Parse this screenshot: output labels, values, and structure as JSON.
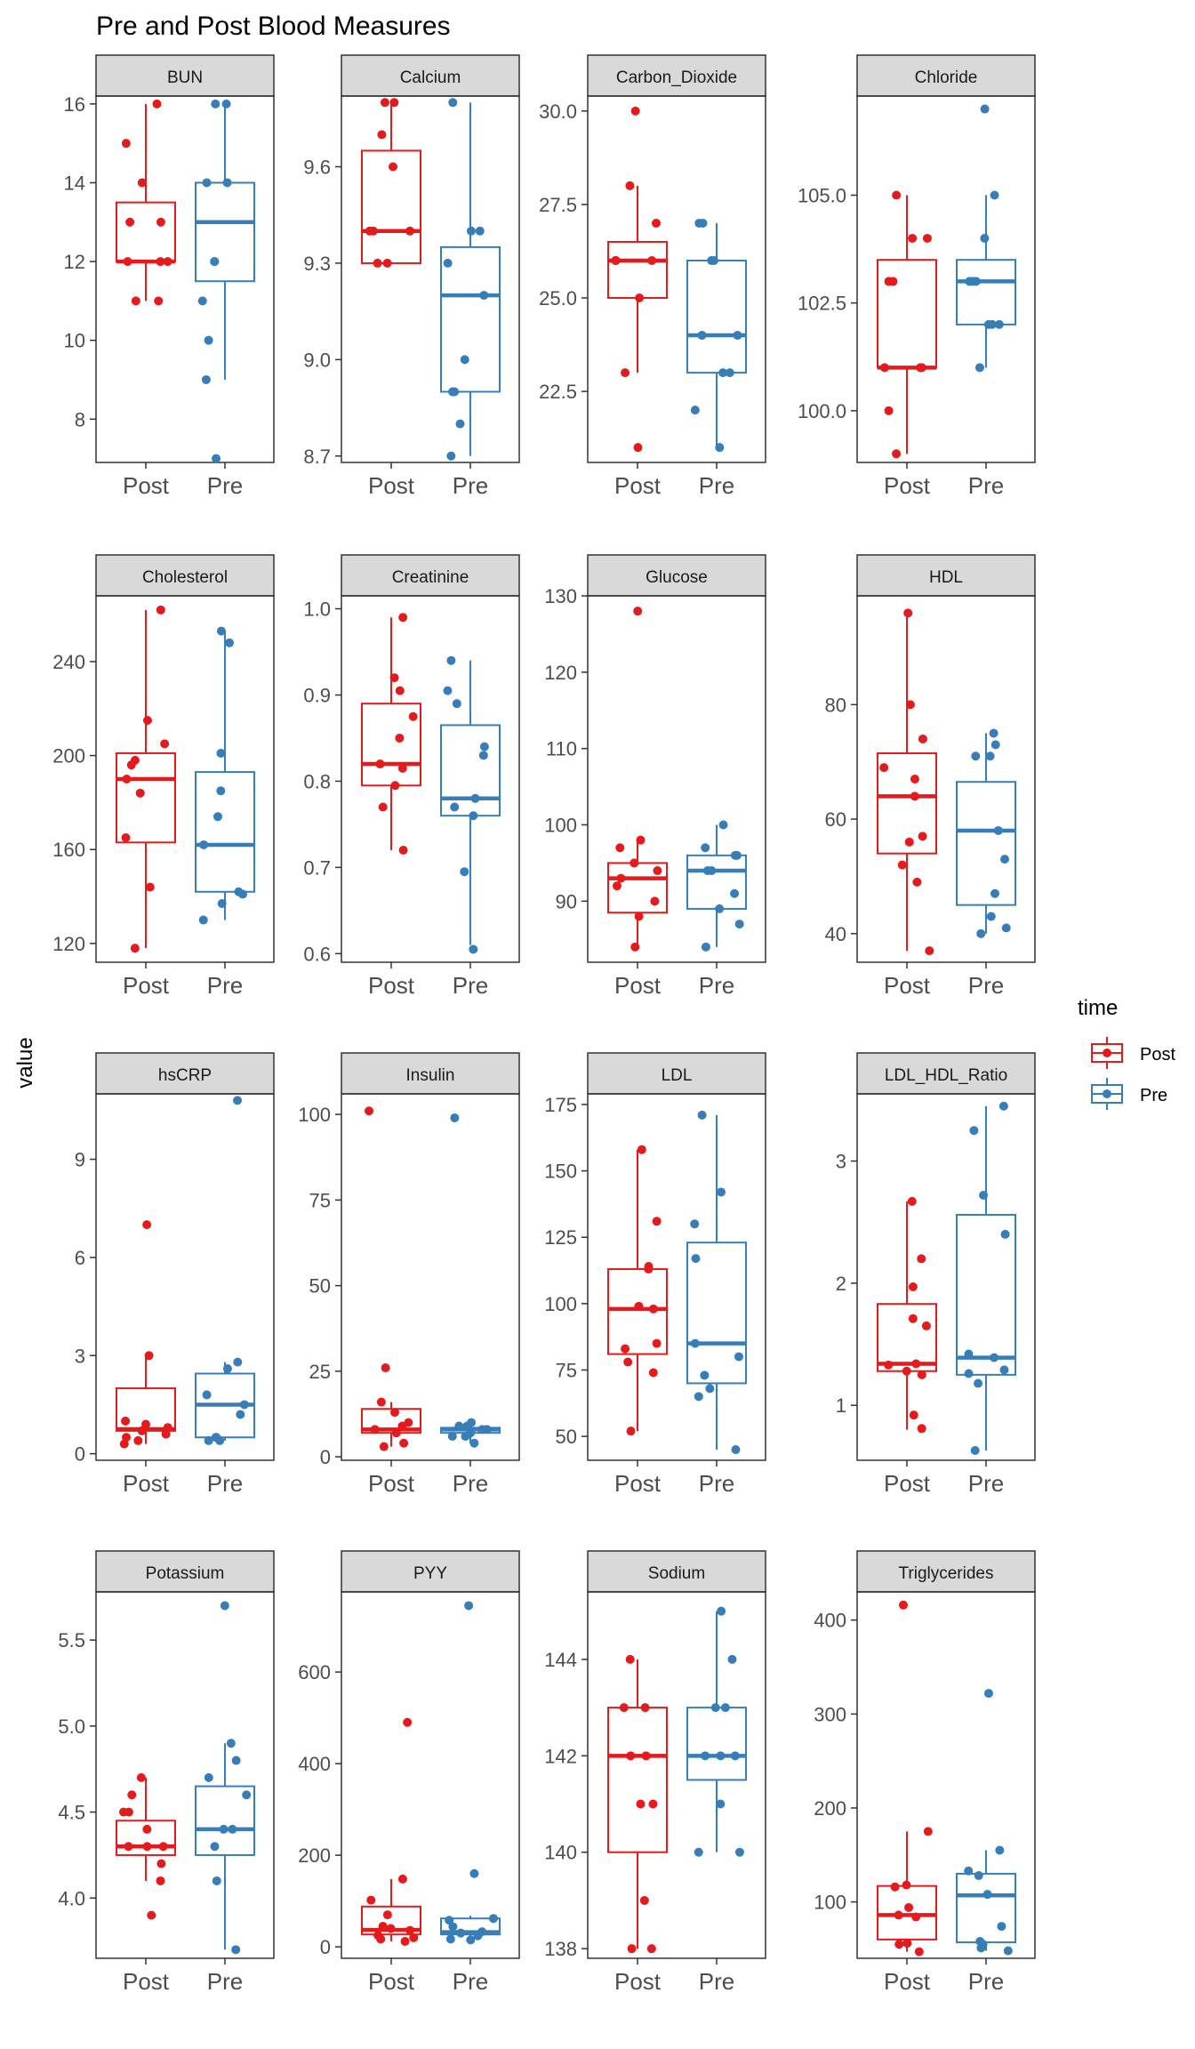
{
  "chart_data": {
    "type": "boxplot",
    "title": "Pre and Post Blood Measures",
    "ylabel": "value",
    "xlabel": "",
    "legend": {
      "title": "time",
      "position": "right",
      "entries": [
        {
          "name": "Post",
          "color": "#E41A1C"
        },
        {
          "name": "Pre",
          "color": "#377EB8"
        }
      ]
    },
    "categories": [
      "Post",
      "Pre"
    ],
    "panels": [
      {
        "name": "BUN",
        "ylim": [
          6.9,
          16.2
        ],
        "yticks": [
          8,
          10,
          12,
          14,
          16
        ],
        "yticklabels": [
          "8",
          "10",
          "12",
          "14",
          "16"
        ],
        "boxes": [
          {
            "group": "Post",
            "q1": 12,
            "median": 12,
            "q3": 13.5,
            "wlo": 11,
            "whi": 16
          },
          {
            "group": "Pre",
            "q1": 11.5,
            "median": 13,
            "q3": 14,
            "wlo": 9,
            "whi": 16
          }
        ],
        "points": {
          "Post": [
            16,
            15,
            14,
            13,
            13,
            12,
            12,
            12,
            11,
            11
          ],
          "Pre": [
            16,
            16,
            14,
            14,
            12,
            12,
            11,
            10,
            9,
            7
          ]
        }
      },
      {
        "name": "Calcium",
        "ylim": [
          8.68,
          9.82
        ],
        "yticks": [
          8.7,
          9.0,
          9.3,
          9.6
        ],
        "yticklabels": [
          "8.7",
          "9.0",
          "9.3",
          "9.6"
        ],
        "boxes": [
          {
            "group": "Post",
            "q1": 9.3,
            "median": 9.4,
            "q3": 9.65,
            "wlo": 9.3,
            "whi": 9.8
          },
          {
            "group": "Pre",
            "q1": 8.9,
            "median": 9.2,
            "q3": 9.35,
            "wlo": 8.7,
            "whi": 9.8
          }
        ],
        "points": {
          "Post": [
            9.8,
            9.8,
            9.7,
            9.6,
            9.4,
            9.4,
            9.4,
            9.3,
            9.3
          ],
          "Pre": [
            9.8,
            9.4,
            9.4,
            9.3,
            9.2,
            9.0,
            8.9,
            8.9,
            8.8,
            8.7
          ]
        }
      },
      {
        "name": "Carbon_Dioxide",
        "ylim": [
          20.6,
          30.4
        ],
        "yticks": [
          22.5,
          25.0,
          27.5,
          30.0
        ],
        "yticklabels": [
          "22.5",
          "25.0",
          "27.5",
          "30.0"
        ],
        "boxes": [
          {
            "group": "Post",
            "q1": 25,
            "median": 26,
            "q3": 26.5,
            "wlo": 23,
            "whi": 28
          },
          {
            "group": "Pre",
            "q1": 23,
            "median": 24,
            "q3": 26,
            "wlo": 21,
            "whi": 27
          }
        ],
        "points": {
          "Post": [
            30,
            28,
            27,
            26,
            26,
            26,
            25,
            23,
            21
          ],
          "Pre": [
            27,
            27,
            26,
            26,
            24,
            24,
            23,
            23,
            22,
            21
          ]
        }
      },
      {
        "name": "Chloride",
        "ylim": [
          98.8,
          107.3
        ],
        "yticks": [
          100.0,
          102.5,
          105.0
        ],
        "yticklabels": [
          "100.0",
          "102.5",
          "105.0"
        ],
        "boxes": [
          {
            "group": "Post",
            "q1": 101,
            "median": 101,
            "q3": 103.5,
            "wlo": 99,
            "whi": 105
          },
          {
            "group": "Pre",
            "q1": 102,
            "median": 103,
            "q3": 103.5,
            "wlo": 101,
            "whi": 105
          }
        ],
        "points": {
          "Post": [
            105,
            104,
            104,
            103,
            103,
            101,
            101,
            101,
            100,
            99
          ],
          "Pre": [
            107,
            105,
            104,
            103,
            103,
            103,
            102,
            102,
            102,
            101
          ]
        }
      },
      {
        "name": "Cholesterol",
        "ylim": [
          112,
          268
        ],
        "yticks": [
          120,
          160,
          200,
          240
        ],
        "yticklabels": [
          "120",
          "160",
          "200",
          "240"
        ],
        "boxes": [
          {
            "group": "Post",
            "q1": 163,
            "median": 190,
            "q3": 201,
            "wlo": 118,
            "whi": 262
          },
          {
            "group": "Pre",
            "q1": 142,
            "median": 162,
            "q3": 193,
            "wlo": 130,
            "whi": 253
          }
        ],
        "points": {
          "Post": [
            262,
            215,
            205,
            198,
            196,
            190,
            184,
            165,
            144,
            118
          ],
          "Pre": [
            253,
            248,
            201,
            185,
            174,
            162,
            142,
            141,
            137,
            130
          ]
        }
      },
      {
        "name": "Creatinine",
        "ylim": [
          0.59,
          1.015
        ],
        "yticks": [
          0.6,
          0.7,
          0.8,
          0.9,
          1.0
        ],
        "yticklabels": [
          "0.6",
          "0.7",
          "0.8",
          "0.9",
          "1.0"
        ],
        "boxes": [
          {
            "group": "Post",
            "q1": 0.795,
            "median": 0.82,
            "q3": 0.89,
            "wlo": 0.72,
            "whi": 0.99
          },
          {
            "group": "Pre",
            "q1": 0.76,
            "median": 0.78,
            "q3": 0.865,
            "wlo": 0.61,
            "whi": 0.94
          }
        ],
        "points": {
          "Post": [
            0.99,
            0.92,
            0.905,
            0.875,
            0.85,
            0.82,
            0.815,
            0.795,
            0.77,
            0.72
          ],
          "Pre": [
            0.94,
            0.905,
            0.89,
            0.84,
            0.83,
            0.78,
            0.77,
            0.76,
            0.695,
            0.605
          ]
        }
      },
      {
        "name": "Glucose",
        "ylim": [
          82,
          130
        ],
        "yticks": [
          90,
          100,
          110,
          120,
          130
        ],
        "yticklabels": [
          "90",
          "100",
          "110",
          "120",
          "130"
        ],
        "boxes": [
          {
            "group": "Post",
            "q1": 88.5,
            "median": 93,
            "q3": 95,
            "wlo": 84,
            "whi": 98
          },
          {
            "group": "Pre",
            "q1": 89,
            "median": 94,
            "q3": 96,
            "wlo": 84,
            "whi": 100
          }
        ],
        "points": {
          "Post": [
            128,
            98,
            97,
            95,
            94,
            93,
            92,
            90,
            88,
            84
          ],
          "Pre": [
            100,
            97,
            96,
            96,
            94,
            94,
            91,
            89,
            87,
            84
          ]
        }
      },
      {
        "name": "HDL",
        "ylim": [
          35,
          99
        ],
        "yticks": [
          40,
          60,
          80
        ],
        "yticklabels": [
          "40",
          "60",
          "80"
        ],
        "boxes": [
          {
            "group": "Post",
            "q1": 54,
            "median": 64,
            "q3": 71.5,
            "wlo": 37,
            "whi": 96
          },
          {
            "group": "Pre",
            "q1": 45,
            "median": 58,
            "q3": 66.5,
            "wlo": 40,
            "whi": 75
          }
        ],
        "points": {
          "Post": [
            96,
            80,
            74,
            69,
            67,
            64,
            57,
            56,
            52,
            49,
            37
          ],
          "Pre": [
            75,
            73,
            71,
            71,
            58,
            53,
            47,
            43,
            41,
            40
          ]
        }
      },
      {
        "name": "hsCRP",
        "ylim": [
          -0.2,
          11.0
        ],
        "yticks": [
          0,
          3,
          6,
          9
        ],
        "yticklabels": [
          "0",
          "3",
          "6",
          "9"
        ],
        "boxes": [
          {
            "group": "Post",
            "q1": 0.7,
            "median": 0.75,
            "q3": 2.0,
            "wlo": 0.3,
            "whi": 3.0
          },
          {
            "group": "Pre",
            "q1": 0.5,
            "median": 1.5,
            "q3": 2.45,
            "wlo": 0.4,
            "whi": 2.8
          }
        ],
        "points": {
          "Post": [
            7.0,
            3.0,
            1.0,
            0.9,
            0.8,
            0.7,
            0.6,
            0.5,
            0.4,
            0.3
          ],
          "Pre": [
            10.8,
            2.8,
            2.6,
            1.8,
            1.5,
            1.2,
            0.5,
            0.5,
            0.4,
            0.4
          ]
        }
      },
      {
        "name": "Insulin",
        "ylim": [
          -1,
          106
        ],
        "yticks": [
          0,
          25,
          50,
          75,
          100
        ],
        "yticklabels": [
          "0",
          "25",
          "50",
          "75",
          "100"
        ],
        "boxes": [
          {
            "group": "Post",
            "q1": 7,
            "median": 8,
            "q3": 14,
            "wlo": 3,
            "whi": 16
          },
          {
            "group": "Pre",
            "q1": 7,
            "median": 8,
            "q3": 8.5,
            "wlo": 4,
            "whi": 10
          }
        ],
        "points": {
          "Post": [
            101,
            26,
            16,
            13,
            10,
            9,
            8,
            7,
            4,
            3
          ],
          "Pre": [
            99,
            10,
            9,
            9,
            8,
            8,
            7,
            6,
            6,
            4
          ]
        }
      },
      {
        "name": "LDL",
        "ylim": [
          41,
          179
        ],
        "yticks": [
          50,
          75,
          100,
          125,
          150,
          175
        ],
        "yticklabels": [
          "50",
          "75",
          "100",
          "125",
          "150",
          "175"
        ],
        "boxes": [
          {
            "group": "Post",
            "q1": 81,
            "median": 98,
            "q3": 113,
            "wlo": 52,
            "whi": 158
          },
          {
            "group": "Pre",
            "q1": 70,
            "median": 85,
            "q3": 123,
            "wlo": 45,
            "whi": 171
          }
        ],
        "points": {
          "Post": [
            158,
            131,
            114,
            113,
            99,
            98,
            85,
            83,
            78,
            74,
            52
          ],
          "Pre": [
            171,
            142,
            130,
            117,
            85,
            80,
            73,
            68,
            65,
            45
          ]
        }
      },
      {
        "name": "LDL_HDL_Ratio",
        "ylim": [
          0.55,
          3.55
        ],
        "yticks": [
          1,
          2,
          3
        ],
        "yticklabels": [
          "1",
          "2",
          "3"
        ],
        "boxes": [
          {
            "group": "Post",
            "q1": 1.28,
            "median": 1.34,
            "q3": 1.83,
            "wlo": 0.8,
            "whi": 2.67
          },
          {
            "group": "Pre",
            "q1": 1.25,
            "median": 1.39,
            "q3": 2.56,
            "wlo": 0.63,
            "whi": 3.45
          }
        ],
        "points": {
          "Post": [
            2.67,
            2.2,
            1.97,
            1.71,
            1.65,
            1.34,
            1.33,
            1.28,
            1.25,
            0.92,
            0.81
          ],
          "Pre": [
            3.45,
            3.25,
            2.72,
            2.4,
            1.42,
            1.39,
            1.29,
            1.26,
            1.18,
            0.63
          ]
        }
      },
      {
        "name": "Potassium",
        "ylim": [
          3.65,
          5.78
        ],
        "yticks": [
          4.0,
          4.5,
          5.0,
          5.5
        ],
        "yticklabels": [
          "4.0",
          "4.5",
          "5.0",
          "5.5"
        ],
        "boxes": [
          {
            "group": "Post",
            "q1": 4.25,
            "median": 4.3,
            "q3": 4.45,
            "wlo": 4.1,
            "whi": 4.7
          },
          {
            "group": "Pre",
            "q1": 4.25,
            "median": 4.4,
            "q3": 4.65,
            "wlo": 3.7,
            "whi": 4.9
          }
        ],
        "points": {
          "Post": [
            4.7,
            4.6,
            4.5,
            4.5,
            4.4,
            4.3,
            4.3,
            4.3,
            4.2,
            4.1,
            3.9
          ],
          "Pre": [
            5.7,
            4.9,
            4.8,
            4.7,
            4.6,
            4.4,
            4.4,
            4.3,
            4.1,
            3.7
          ]
        }
      },
      {
        "name": "PYY",
        "ylim": [
          -25,
          775
        ],
        "yticks": [
          0,
          200,
          400,
          600
        ],
        "yticklabels": [
          "0",
          "200",
          "400",
          "600"
        ],
        "boxes": [
          {
            "group": "Post",
            "q1": 27,
            "median": 37,
            "q3": 88,
            "wlo": 12,
            "whi": 148
          },
          {
            "group": "Pre",
            "q1": 27,
            "median": 32,
            "q3": 62,
            "wlo": 15,
            "whi": 68
          }
        ],
        "points": {
          "Post": [
            490,
            148,
            102,
            70,
            45,
            40,
            36,
            25,
            20,
            17,
            12
          ],
          "Pre": [
            745,
            160,
            62,
            58,
            44,
            33,
            30,
            24,
            17,
            15
          ]
        }
      },
      {
        "name": "Sodium",
        "ylim": [
          137.8,
          145.4
        ],
        "yticks": [
          138,
          140,
          142,
          144
        ],
        "yticklabels": [
          "138",
          "140",
          "142",
          "144"
        ],
        "boxes": [
          {
            "group": "Post",
            "q1": 140,
            "median": 142,
            "q3": 143,
            "wlo": 138,
            "whi": 144
          },
          {
            "group": "Pre",
            "q1": 141.5,
            "median": 142,
            "q3": 143,
            "wlo": 140,
            "whi": 145
          }
        ],
        "points": {
          "Post": [
            144,
            143,
            143,
            142,
            142,
            141,
            141,
            139,
            138,
            138
          ],
          "Pre": [
            145,
            144,
            143,
            143,
            142,
            142,
            142,
            141,
            140,
            140
          ]
        }
      },
      {
        "name": "Triglycerides",
        "ylim": [
          40,
          430
        ],
        "yticks": [
          100,
          200,
          300,
          400
        ],
        "yticklabels": [
          "100",
          "200",
          "300",
          "400"
        ],
        "boxes": [
          {
            "group": "Post",
            "q1": 60,
            "median": 86,
            "q3": 117,
            "wlo": 47,
            "whi": 175
          },
          {
            "group": "Pre",
            "q1": 57,
            "median": 107,
            "q3": 130,
            "wlo": 48,
            "whi": 155
          }
        ],
        "points": {
          "Post": [
            416,
            175,
            118,
            116,
            94,
            86,
            84,
            56,
            55,
            47
          ],
          "Pre": [
            322,
            155,
            133,
            128,
            108,
            74,
            58,
            55,
            51,
            48
          ]
        }
      }
    ]
  }
}
